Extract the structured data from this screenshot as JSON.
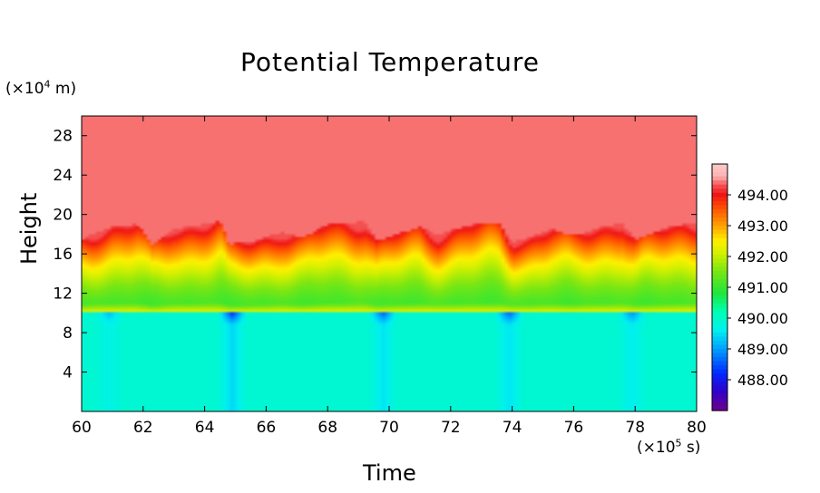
{
  "chart_data": {
    "type": "heatmap",
    "title": "Potential Temperature",
    "xlabel": "Time",
    "ylabel": "Height",
    "x_unit": {
      "prefix": "(×10",
      "exp": "5",
      "suffix": " s)"
    },
    "y_unit": {
      "prefix": "(×10",
      "exp": "4",
      "suffix": " m)"
    },
    "xlim": [
      60,
      80
    ],
    "ylim": [
      0,
      30
    ],
    "x_ticks": [
      "60",
      "62",
      "64",
      "66",
      "68",
      "70",
      "72",
      "74",
      "76",
      "78",
      "80"
    ],
    "y_ticks": [
      "4",
      "8",
      "12",
      "16",
      "20",
      "24",
      "28"
    ],
    "colorbar": {
      "range": [
        487.0,
        495.0
      ],
      "tick_labels": [
        "494.00",
        "493.00",
        "492.00",
        "491.00",
        "490.00",
        "489.00",
        "488.00"
      ],
      "tick_values": [
        494,
        493,
        492,
        491,
        490,
        489,
        488
      ]
    },
    "field": {
      "upper_layer_value": 494.4,
      "lower_layer_value": 489.9,
      "boundary_layer_base_height": 10,
      "boundary_layer_top_profile": {
        "time": [
          60,
          60.5,
          61,
          61.8,
          62.3,
          63,
          64.5,
          64.8,
          65.5,
          66.5,
          67.2,
          68,
          69.2,
          69.6,
          70.2,
          71,
          71.6,
          72.5,
          73.6,
          74,
          74.5,
          75.3,
          76,
          76.8,
          77.6,
          78,
          78.5,
          79.2,
          80
        ],
        "height": [
          17.5,
          18.2,
          18.8,
          19.0,
          17.0,
          18.5,
          19.3,
          17.0,
          17.2,
          18.2,
          17.6,
          19.0,
          19.3,
          17.3,
          17.9,
          18.8,
          17.9,
          18.9,
          19.2,
          17.2,
          17.6,
          18.6,
          17.8,
          18.7,
          19.1,
          17.5,
          18.0,
          18.8,
          19.2
        ]
      },
      "cool_streaks": [
        {
          "time": 60.9,
          "strength": 0.4
        },
        {
          "time": 64.9,
          "strength": 1.0
        },
        {
          "time": 69.8,
          "strength": 0.8
        },
        {
          "time": 73.9,
          "strength": 0.8
        },
        {
          "time": 77.9,
          "strength": 0.6
        }
      ]
    }
  }
}
